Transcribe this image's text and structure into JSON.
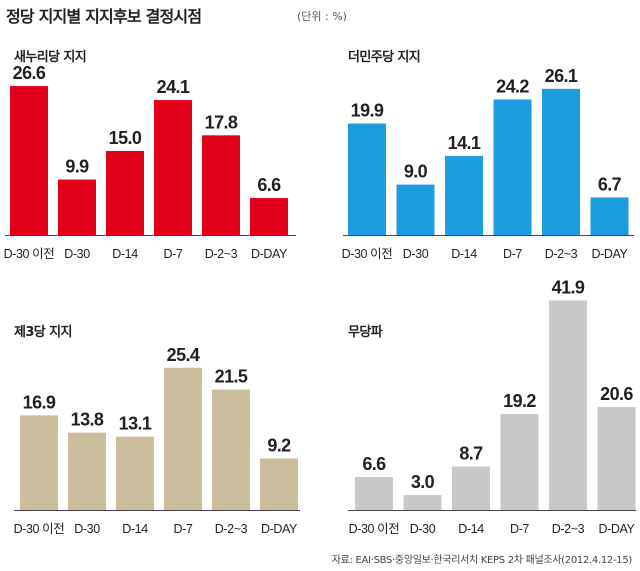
{
  "title": "정당 지지별 지지후보 결정시점",
  "unit": "(단위 : %)",
  "source": "자료: EAI·SBS·중앙일보·한국리서치 KEPS 2차 패널조사(2012.4.12-15)",
  "colors": {
    "saenuri": "#e2001a",
    "minjoo": "#1c9de0",
    "third": "#cbbd9c",
    "independent": "#c8c8c8",
    "axis": "#444444"
  },
  "chart_data": [
    {
      "type": "bar",
      "title": "새누리당 지지",
      "categories": [
        "D-30 이전",
        "D-30",
        "D-14",
        "D-7",
        "D-2~3",
        "D-DAY"
      ],
      "values": [
        26.6,
        9.9,
        15.0,
        24.1,
        17.8,
        6.6
      ],
      "labels": [
        "26.6",
        "9.9",
        "15.0",
        "24.1",
        "17.8",
        "6.6"
      ],
      "color": "#e2001a",
      "ylim": [
        0,
        27
      ]
    },
    {
      "type": "bar",
      "title": "더민주당 지지",
      "categories": [
        "D-30 이전",
        "D-30",
        "D-14",
        "D-7",
        "D-2~3",
        "D-DAY"
      ],
      "values": [
        19.9,
        9.0,
        14.1,
        24.2,
        26.1,
        6.7
      ],
      "labels": [
        "19.9",
        "9.0",
        "14.1",
        "24.2",
        "26.1",
        "6.7"
      ],
      "color": "#1c9de0",
      "ylim": [
        0,
        27
      ]
    },
    {
      "type": "bar",
      "title": "제3당 지지",
      "categories": [
        "D-30 이전",
        "D-30",
        "D-14",
        "D-7",
        "D-2~3",
        "D-DAY"
      ],
      "values": [
        16.9,
        13.8,
        13.1,
        25.4,
        21.5,
        9.2
      ],
      "labels": [
        "16.9",
        "13.8",
        "13.1",
        "25.4",
        "21.5",
        "9.2"
      ],
      "color": "#cbbd9c",
      "ylim": [
        0,
        27
      ]
    },
    {
      "type": "bar",
      "title": "무당파",
      "categories": [
        "D-30 이전",
        "D-30",
        "D-14",
        "D-7",
        "D-2~3",
        "D-DAY"
      ],
      "values": [
        6.6,
        3.0,
        8.7,
        19.2,
        41.9,
        20.6
      ],
      "labels": [
        "6.6",
        "3.0",
        "8.7",
        "19.2",
        "41.9",
        "20.6"
      ],
      "color": "#c8c8c8",
      "ylim": [
        0,
        42
      ]
    }
  ]
}
